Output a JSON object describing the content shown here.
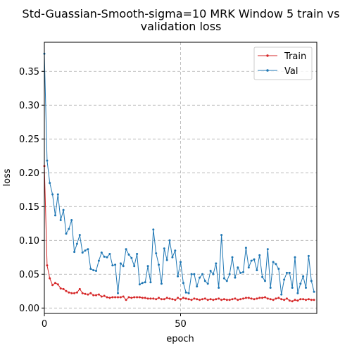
{
  "chart_data": {
    "type": "line",
    "title_line1": "Std-Guassian-Smooth-sigma=10 MRK Window 5 train vs",
    "title_line2": "validation loss",
    "xlabel": "epoch",
    "ylabel": "loss",
    "xlim": [
      0,
      100
    ],
    "ylim": [
      -0.008,
      0.393
    ],
    "xticks": [
      0,
      50
    ],
    "yticks": [
      0.0,
      0.05,
      0.1,
      0.15,
      0.2,
      0.25,
      0.3,
      0.35
    ],
    "xtick_labels": [
      "0",
      "50"
    ],
    "ytick_labels": [
      "0.00",
      "0.05",
      "0.10",
      "0.15",
      "0.20",
      "0.25",
      "0.30",
      "0.35"
    ],
    "grid": true,
    "legend_position": "top-right",
    "series": [
      {
        "name": "Train",
        "color": "#d62728",
        "x": [
          0,
          1,
          2,
          3,
          4,
          5,
          6,
          7,
          8,
          9,
          10,
          11,
          12,
          13,
          14,
          15,
          16,
          17,
          18,
          19,
          20,
          21,
          22,
          23,
          24,
          25,
          26,
          27,
          28,
          29,
          30,
          31,
          32,
          33,
          34,
          35,
          36,
          37,
          38,
          39,
          40,
          41,
          42,
          43,
          44,
          45,
          46,
          47,
          48,
          49,
          50,
          51,
          52,
          53,
          54,
          55,
          56,
          57,
          58,
          59,
          60,
          61,
          62,
          63,
          64,
          65,
          66,
          67,
          68,
          69,
          70,
          71,
          72,
          73,
          74,
          75,
          76,
          77,
          78,
          79,
          80,
          81,
          82,
          83,
          84,
          85,
          86,
          87,
          88,
          89,
          90,
          91,
          92,
          93,
          94,
          95,
          96,
          97,
          98,
          99
        ],
        "y": [
          0.21,
          0.063,
          0.044,
          0.034,
          0.037,
          0.035,
          0.029,
          0.028,
          0.025,
          0.023,
          0.022,
          0.022,
          0.023,
          0.028,
          0.022,
          0.021,
          0.02,
          0.022,
          0.019,
          0.019,
          0.02,
          0.017,
          0.018,
          0.016,
          0.015,
          0.016,
          0.016,
          0.016,
          0.016,
          0.017,
          0.012,
          0.016,
          0.015,
          0.016,
          0.016,
          0.016,
          0.015,
          0.015,
          0.014,
          0.014,
          0.014,
          0.013,
          0.015,
          0.013,
          0.013,
          0.015,
          0.014,
          0.013,
          0.012,
          0.015,
          0.013,
          0.015,
          0.014,
          0.013,
          0.012,
          0.014,
          0.013,
          0.012,
          0.013,
          0.014,
          0.012,
          0.013,
          0.012,
          0.013,
          0.014,
          0.012,
          0.013,
          0.012,
          0.012,
          0.013,
          0.014,
          0.012,
          0.013,
          0.014,
          0.015,
          0.015,
          0.014,
          0.013,
          0.014,
          0.015,
          0.015,
          0.016,
          0.014,
          0.013,
          0.012,
          0.014,
          0.015,
          0.013,
          0.012,
          0.014,
          0.011,
          0.01,
          0.012,
          0.011,
          0.013,
          0.013,
          0.012,
          0.013,
          0.012,
          0.012
        ]
      },
      {
        "name": "Val",
        "color": "#1f77b4",
        "x": [
          0,
          1,
          2,
          3,
          4,
          5,
          6,
          7,
          8,
          9,
          10,
          11,
          12,
          13,
          14,
          15,
          16,
          17,
          18,
          19,
          20,
          21,
          22,
          23,
          24,
          25,
          26,
          27,
          28,
          29,
          30,
          31,
          32,
          33,
          34,
          35,
          36,
          37,
          38,
          39,
          40,
          41,
          42,
          43,
          44,
          45,
          46,
          47,
          48,
          49,
          50,
          51,
          52,
          53,
          54,
          55,
          56,
          57,
          58,
          59,
          60,
          61,
          62,
          63,
          64,
          65,
          66,
          67,
          68,
          69,
          70,
          71,
          72,
          73,
          74,
          75,
          76,
          77,
          78,
          79,
          80,
          81,
          82,
          83,
          84,
          85,
          86,
          87,
          88,
          89,
          90,
          91,
          92,
          93,
          94,
          95,
          96,
          97,
          98,
          99
        ],
        "y": [
          0.376,
          0.218,
          0.185,
          0.168,
          0.137,
          0.168,
          0.13,
          0.145,
          0.11,
          0.117,
          0.13,
          0.083,
          0.095,
          0.108,
          0.082,
          0.085,
          0.087,
          0.058,
          0.056,
          0.055,
          0.07,
          0.082,
          0.076,
          0.075,
          0.08,
          0.063,
          0.064,
          0.022,
          0.066,
          0.062,
          0.087,
          0.079,
          0.074,
          0.062,
          0.08,
          0.035,
          0.037,
          0.038,
          0.062,
          0.038,
          0.116,
          0.081,
          0.064,
          0.036,
          0.088,
          0.071,
          0.1,
          0.075,
          0.085,
          0.047,
          0.068,
          0.037,
          0.023,
          0.022,
          0.05,
          0.05,
          0.032,
          0.045,
          0.05,
          0.04,
          0.036,
          0.055,
          0.05,
          0.066,
          0.03,
          0.108,
          0.044,
          0.04,
          0.05,
          0.075,
          0.045,
          0.06,
          0.052,
          0.053,
          0.089,
          0.06,
          0.07,
          0.072,
          0.056,
          0.078,
          0.046,
          0.04,
          0.087,
          0.03,
          0.068,
          0.065,
          0.058,
          0.02,
          0.042,
          0.052,
          0.052,
          0.03,
          0.075,
          0.022,
          0.036,
          0.047,
          0.03,
          0.077,
          0.04,
          0.024
        ]
      }
    ]
  }
}
